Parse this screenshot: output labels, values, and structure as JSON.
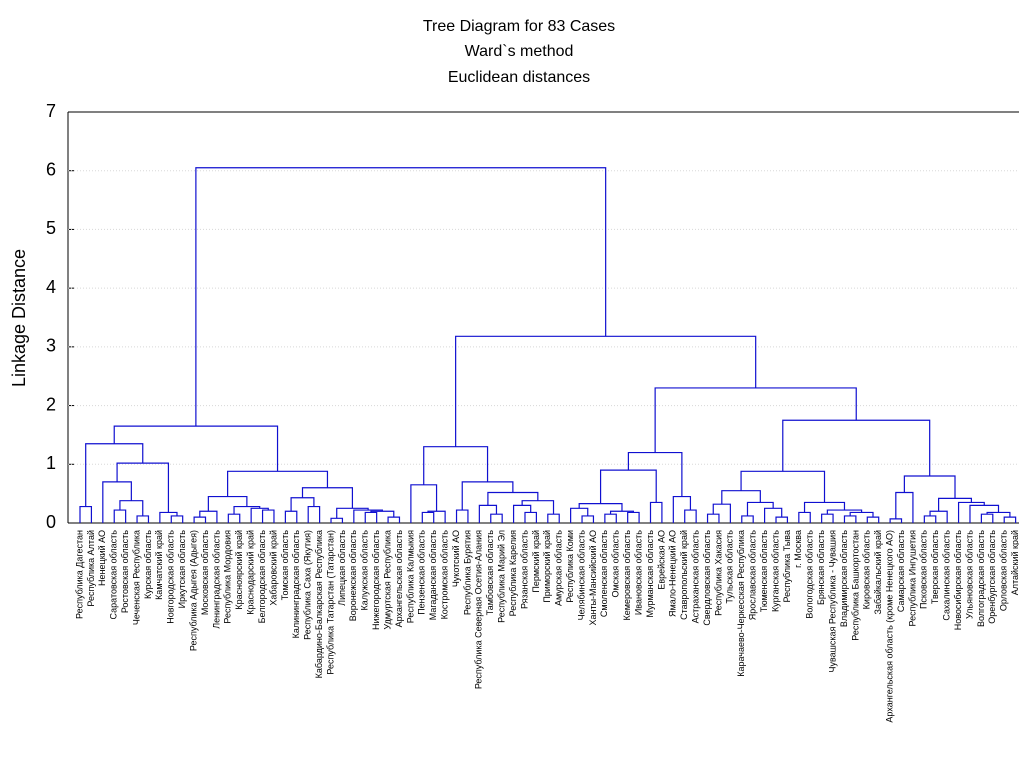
{
  "chart_data": {
    "type": "dendrogram",
    "title": "Tree Diagram for 83 Cases",
    "subtitle": [
      "Ward`s method",
      "Euclidean distances"
    ],
    "ylabel": "Linkage Distance",
    "ylim": [
      0,
      7
    ],
    "yticks": [
      0,
      1,
      2,
      3,
      4,
      5,
      6,
      7
    ],
    "grid": true,
    "color": "#1010d0",
    "tree": {
      "height": 6.05,
      "children": [
        {
          "height": 1.65,
          "children": [
            {
              "height": 1.35,
              "children": [
                {
                  "height": 0.28,
                  "children": [
                    "Республика Дагестан",
                    "Республика Алтай"
                  ]
                },
                {
                  "height": 1.02,
                  "children": [
                    {
                      "height": 0.7,
                      "children": [
                        "Ненецкий АО",
                        {
                          "height": 0.38,
                          "children": [
                            {
                              "height": 0.22,
                              "children": [
                                "Саратовская область",
                                "Ростовская область"
                              ]
                            },
                            {
                              "height": 0.12,
                              "children": [
                                "Чеченская Республика",
                                "Курская область"
                              ]
                            }
                          ]
                        }
                      ]
                    },
                    {
                      "height": 0.18,
                      "children": [
                        "Камчатский край",
                        {
                          "height": 0.12,
                          "children": [
                            "Новгородская область",
                            "Иркутская область"
                          ]
                        }
                      ]
                    }
                  ]
                }
              ]
            },
            {
              "height": 0.88,
              "children": [
                {
                  "height": 0.45,
                  "children": [
                    {
                      "height": 0.2,
                      "children": [
                        {
                          "height": 0.1,
                          "children": [
                            "Республика Адыгея (Адыгея)",
                            "Московская область"
                          ]
                        },
                        "Ленинградская область"
                      ]
                    },
                    {
                      "height": 0.28,
                      "children": [
                        {
                          "height": 0.15,
                          "children": [
                            "Республика Мордовия",
                            "Красноярский край"
                          ]
                        },
                        {
                          "height": 0.25,
                          "children": [
                            "Краснодарский край",
                            {
                              "height": 0.22,
                              "children": [
                                "Белгородская область",
                                "Хабаровский край"
                              ]
                            }
                          ]
                        }
                      ]
                    }
                  ]
                },
                {
                  "height": 0.6,
                  "children": [
                    {
                      "height": 0.43,
                      "children": [
                        {
                          "height": 0.2,
                          "children": [
                            "Томская область",
                            "Калининградская область"
                          ]
                        },
                        {
                          "height": 0.28,
                          "children": [
                            "Республика Саха (Якутия)",
                            "Кабардино-Балкарская Республика"
                          ]
                        }
                      ]
                    },
                    {
                      "height": 0.25,
                      "children": [
                        {
                          "height": 0.08,
                          "children": [
                            "Республика Татарстан (Татарстан)",
                            "Липецкая область"
                          ]
                        },
                        {
                          "height": 0.22,
                          "children": [
                            "Воронежская область",
                            {
                              "height": 0.2,
                              "children": [
                                {
                                  "height": 0.18,
                                  "children": [
                                    "Калужская область",
                                    "Нижегородская область"
                                  ]
                                },
                                {
                                  "height": 0.1,
                                  "children": [
                                    "Удмуртская Республика",
                                    "Архангельская область"
                                  ]
                                }
                              ]
                            }
                          ]
                        }
                      ]
                    }
                  ]
                }
              ]
            }
          ]
        },
        {
          "height": 3.18,
          "children": [
            {
              "height": 1.3,
              "children": [
                {
                  "height": 0.65,
                  "children": [
                    "Республика Калмыкия",
                    {
                      "height": 0.2,
                      "children": [
                        {
                          "height": 0.18,
                          "children": [
                            "Пензенская область",
                            "Магаданская область"
                          ]
                        },
                        "Костромская область"
                      ]
                    }
                  ]
                },
                {
                  "height": 0.7,
                  "children": [
                    {
                      "height": 0.22,
                      "children": [
                        "Чукотский АО",
                        "Республика Бурятия"
                      ]
                    },
                    {
                      "height": 0.52,
                      "children": [
                        {
                          "height": 0.3,
                          "children": [
                            "Республика Северная Осетия-Алания",
                            {
                              "height": 0.15,
                              "children": [
                                "Тамбовская область",
                                "Республика Марий Эл"
                              ]
                            }
                          ]
                        },
                        {
                          "height": 0.38,
                          "children": [
                            {
                              "height": 0.3,
                              "children": [
                                "Республика Карелия",
                                {
                                  "height": 0.18,
                                  "children": [
                                    "Рязанская область",
                                    "Пермский край"
                                  ]
                                }
                              ]
                            },
                            {
                              "height": 0.15,
                              "children": [
                                "Приморский край",
                                "Амурская область"
                              ]
                            }
                          ]
                        }
                      ]
                    }
                  ]
                }
              ]
            },
            {
              "height": 2.3,
              "children": [
                {
                  "height": 1.2,
                  "children": [
                    {
                      "height": 0.9,
                      "children": [
                        {
                          "height": 0.33,
                          "children": [
                            {
                              "height": 0.25,
                              "children": [
                                "Республика Коми",
                                {
                                  "height": 0.12,
                                  "children": [
                                    "Челябинская область",
                                    "Ханты-Мансийский АО"
                                  ]
                                }
                              ]
                            },
                            {
                              "height": 0.2,
                              "children": [
                                {
                                  "height": 0.15,
                                  "children": [
                                    "Смоленская область",
                                    "Омская область"
                                  ]
                                },
                                {
                                  "height": 0.18,
                                  "children": [
                                    "Кемеровская область",
                                    "Ивановская область"
                                  ]
                                }
                              ]
                            }
                          ]
                        },
                        {
                          "height": 0.35,
                          "children": [
                            "Мурманская область",
                            "Еврейская АО"
                          ]
                        }
                      ]
                    },
                    {
                      "height": 0.45,
                      "children": [
                        "Ямало-Ненецкий АО",
                        {
                          "height": 0.22,
                          "children": [
                            "Ставропольский край",
                            "Астраханская область"
                          ]
                        }
                      ]
                    }
                  ]
                },
                {
                  "height": 1.75,
                  "children": [
                    {
                      "height": 0.88,
                      "children": [
                        {
                          "height": 0.55,
                          "children": [
                            {
                              "height": 0.32,
                              "children": [
                                {
                                  "height": 0.15,
                                  "children": [
                                    "Свердловская область",
                                    "Республика Хакасия"
                                  ]
                                },
                                "Тульская область"
                              ]
                            },
                            {
                              "height": 0.35,
                              "children": [
                                {
                                  "height": 0.12,
                                  "children": [
                                    "Карачаево-Черкесская Республика",
                                    "Ярославская область"
                                  ]
                                },
                                {
                                  "height": 0.25,
                                  "children": [
                                    "Тюменская область",
                                    {
                                      "height": 0.1,
                                      "children": [
                                        "Курганская область",
                                        "Республика Тыва"
                                      ]
                                    }
                                  ]
                                }
                              ]
                            }
                          ]
                        },
                        {
                          "height": 0.35,
                          "children": [
                            {
                              "height": 0.18,
                              "children": [
                                "г. Москва",
                                "Вологодская область"
                              ]
                            },
                            {
                              "height": 0.22,
                              "children": [
                                {
                                  "height": 0.15,
                                  "children": [
                                    "Брянская область",
                                    "Чувашская Республика - Чувашия"
                                  ]
                                },
                                {
                                  "height": 0.18,
                                  "children": [
                                    {
                                      "height": 0.12,
                                      "children": [
                                        "Владимирская область",
                                        "Республика Башкортостан"
                                      ]
                                    },
                                    {
                                      "height": 0.1,
                                      "children": [
                                        "Кировская область",
                                        "Забайкальский край"
                                      ]
                                    }
                                  ]
                                }
                              ]
                            }
                          ]
                        }
                      ]
                    },
                    {
                      "height": 0.8,
                      "children": [
                        {
                          "height": 0.52,
                          "children": [
                            {
                              "height": 0.07,
                              "children": [
                                "Архангельская область (кроме Ненецкого АО)",
                                "Самарская область"
                              ]
                            },
                            "Республика Ингушетия"
                          ]
                        },
                        {
                          "height": 0.42,
                          "children": [
                            {
                              "height": 0.2,
                              "children": [
                                {
                                  "height": 0.12,
                                  "children": [
                                    "Псковская область",
                                    "Тверская область"
                                  ]
                                },
                                "Сахалинская область"
                              ]
                            },
                            {
                              "height": 0.35,
                              "children": [
                                "Новосибирская область",
                                {
                                  "height": 0.3,
                                  "children": [
                                    "Ульяновская область",
                                    {
                                      "height": 0.18,
                                      "children": [
                                        {
                                          "height": 0.15,
                                          "children": [
                                            "Волгоградская область",
                                            "Оренбургская область"
                                          ]
                                        },
                                        {
                                          "height": 0.1,
                                          "children": [
                                            "Орловская область",
                                            "Алтайский край"
                                          ]
                                        }
                                      ]
                                    }
                                  ]
                                }
                              ]
                            }
                          ]
                        }
                      ]
                    }
                  ]
                }
              ]
            }
          ]
        }
      ]
    }
  }
}
